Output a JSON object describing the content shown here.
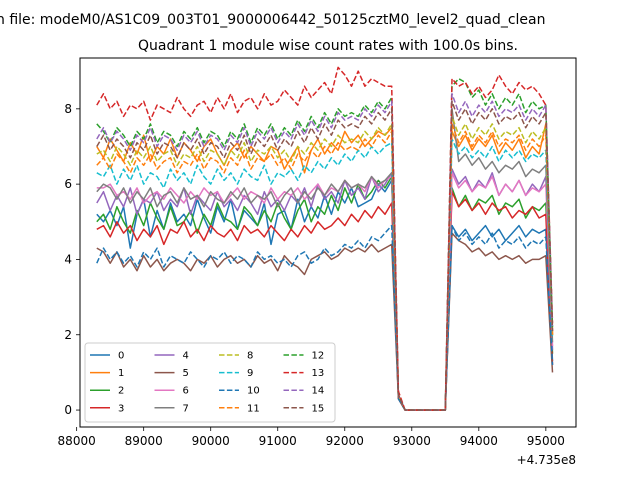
{
  "page": {
    "suptitle": "n file: modeM0/AS1C09_003T01_9000006442_50125cztM0_level2_quad_clean",
    "title": "Quadrant 1 module wise count rates with 100.0s bins."
  },
  "chart_data": {
    "type": "line",
    "title": "Quadrant 1 module wise count rates with 100.0s bins.",
    "xlabel": "",
    "ylabel": "",
    "x_offset_label": "+4.735e8",
    "xlim": [
      88050,
      95450
    ],
    "ylim": [
      -0.45,
      9.35
    ],
    "xticks": [
      88000,
      89000,
      90000,
      91000,
      92000,
      93000,
      94000,
      95000
    ],
    "xtick_labels": [
      "88000",
      "89000",
      "90000",
      "91000",
      "92000",
      "93000",
      "94000",
      "95000"
    ],
    "yticks": [
      0,
      2,
      4,
      6,
      8
    ],
    "ytick_labels": [
      "0",
      "2",
      "4",
      "6",
      "8"
    ],
    "grid": false,
    "legend_position": "lower-left",
    "legend_columns": 4,
    "bins": {
      "x_start": 88300,
      "x_step": 100,
      "count": 69,
      "note": "x values are bin centers, relative to offset 4.735e8"
    },
    "series": [
      {
        "name": "0",
        "color": "#1f77b4",
        "dash": "solid",
        "values": [
          5.2,
          5.0,
          5.3,
          4.9,
          5.4,
          4.3,
          5.2,
          5.6,
          4.6,
          5.3,
          4.8,
          5.5,
          5.0,
          5.2,
          4.9,
          5.6,
          5.1,
          4.7,
          5.4,
          5.0,
          5.6,
          4.8,
          5.3,
          5.1,
          4.9,
          5.5,
          4.4,
          5.2,
          5.3,
          4.8,
          5.6,
          5.0,
          5.4,
          5.1,
          5.7,
          5.2,
          5.8,
          5.5,
          5.9,
          5.4,
          5.5,
          5.6,
          6.0,
          5.8,
          6.1,
          0.4,
          0.0,
          0.0,
          0.0,
          0.0,
          0.0,
          0.0,
          0.0,
          4.9,
          4.6,
          4.8,
          4.5,
          4.7,
          4.9,
          4.6,
          4.8,
          4.5,
          4.7,
          4.9,
          4.6,
          4.8,
          4.7,
          4.8,
          1.3
        ]
      },
      {
        "name": "1",
        "color": "#ff7f0e",
        "dash": "solid",
        "values": [
          7.0,
          6.7,
          7.2,
          6.9,
          6.6,
          7.1,
          6.8,
          7.3,
          6.6,
          7.0,
          6.8,
          7.2,
          6.7,
          7.1,
          6.9,
          6.6,
          7.0,
          7.2,
          6.8,
          6.5,
          6.9,
          7.1,
          6.7,
          7.0,
          6.8,
          6.6,
          7.0,
          6.9,
          6.4,
          6.7,
          7.0,
          6.3,
          6.9,
          7.2,
          6.8,
          7.1,
          6.9,
          7.4,
          7.1,
          7.3,
          7.0,
          7.2,
          7.4,
          7.3,
          7.5,
          0.4,
          0.0,
          0.0,
          0.0,
          0.0,
          0.0,
          0.0,
          0.0,
          7.4,
          7.0,
          7.3,
          6.9,
          7.2,
          7.0,
          7.3,
          6.8,
          7.1,
          6.9,
          7.2,
          6.7,
          7.0,
          6.8,
          7.6,
          2.0
        ]
      },
      {
        "name": "2",
        "color": "#2ca02c",
        "dash": "solid",
        "values": [
          5.0,
          5.2,
          4.8,
          5.4,
          5.0,
          4.7,
          5.3,
          4.9,
          5.5,
          5.1,
          4.8,
          5.4,
          4.9,
          5.0,
          5.3,
          4.7,
          5.2,
          4.9,
          5.5,
          5.1,
          5.0,
          4.8,
          5.4,
          5.2,
          4.9,
          5.3,
          5.0,
          5.5,
          5.1,
          4.8,
          5.3,
          5.6,
          5.0,
          5.4,
          5.2,
          5.7,
          5.3,
          5.9,
          5.5,
          6.0,
          5.6,
          5.8,
          6.1,
          5.9,
          6.2,
          0.4,
          0.0,
          0.0,
          0.0,
          0.0,
          0.0,
          0.0,
          0.0,
          5.9,
          5.4,
          5.7,
          5.3,
          5.6,
          5.5,
          5.7,
          5.2,
          5.5,
          5.4,
          5.6,
          5.1,
          5.4,
          5.3,
          5.5,
          1.5
        ]
      },
      {
        "name": "3",
        "color": "#d62728",
        "dash": "solid",
        "values": [
          4.8,
          4.9,
          4.6,
          5.0,
          4.7,
          4.9,
          4.5,
          4.8,
          4.6,
          4.9,
          4.4,
          4.8,
          4.7,
          5.0,
          4.6,
          4.8,
          4.5,
          4.9,
          4.7,
          4.6,
          4.8,
          4.5,
          4.9,
          4.7,
          4.8,
          4.6,
          4.9,
          4.7,
          4.5,
          4.8,
          4.6,
          4.9,
          4.7,
          5.0,
          4.8,
          4.9,
          5.1,
          4.9,
          5.2,
          5.0,
          5.3,
          5.1,
          5.4,
          5.2,
          5.5,
          0.3,
          0.0,
          0.0,
          0.0,
          0.0,
          0.0,
          0.0,
          0.0,
          5.8,
          5.4,
          5.6,
          5.3,
          5.5,
          5.2,
          5.5,
          5.3,
          5.4,
          5.1,
          5.3,
          5.2,
          5.4,
          5.1,
          5.2,
          1.2
        ]
      },
      {
        "name": "4",
        "color": "#9467bd",
        "dash": "solid",
        "values": [
          5.5,
          5.8,
          5.3,
          5.7,
          5.4,
          5.9,
          5.2,
          5.6,
          5.5,
          5.8,
          5.3,
          5.6,
          5.4,
          5.9,
          5.2,
          5.7,
          5.5,
          5.3,
          5.8,
          5.4,
          5.6,
          5.3,
          5.7,
          5.5,
          5.2,
          5.8,
          5.4,
          5.6,
          5.3,
          5.7,
          5.5,
          5.9,
          5.4,
          6.0,
          5.6,
          5.8,
          5.5,
          6.1,
          5.7,
          5.9,
          5.6,
          6.2,
          5.8,
          6.0,
          6.3,
          0.4,
          0.0,
          0.0,
          0.0,
          0.0,
          0.0,
          0.0,
          0.0,
          6.4,
          6.0,
          6.2,
          5.8,
          6.1,
          5.9,
          6.3,
          5.7,
          6.0,
          5.8,
          6.1,
          5.7,
          6.0,
          5.8,
          6.2,
          1.6
        ]
      },
      {
        "name": "5",
        "color": "#8c564b",
        "dash": "solid",
        "values": [
          4.3,
          4.2,
          3.9,
          4.2,
          3.8,
          4.0,
          3.7,
          4.1,
          3.8,
          4.0,
          3.7,
          3.9,
          4.0,
          3.9,
          3.7,
          4.0,
          3.9,
          4.1,
          3.8,
          4.0,
          4.1,
          3.9,
          4.0,
          3.8,
          4.1,
          3.9,
          4.0,
          3.7,
          4.1,
          3.9,
          3.8,
          3.6,
          4.0,
          4.1,
          4.2,
          4.0,
          4.1,
          4.3,
          4.2,
          4.3,
          4.2,
          4.4,
          4.2,
          4.3,
          4.4,
          0.3,
          0.0,
          0.0,
          0.0,
          0.0,
          0.0,
          0.0,
          0.0,
          4.7,
          4.5,
          4.4,
          4.2,
          4.3,
          4.1,
          4.2,
          4.0,
          4.1,
          4.0,
          4.1,
          3.9,
          4.0,
          4.0,
          4.1,
          1.0
        ]
      },
      {
        "name": "6",
        "color": "#e377c2",
        "dash": "solid",
        "values": [
          5.9,
          5.9,
          6.0,
          5.7,
          5.8,
          5.6,
          5.9,
          5.5,
          5.7,
          5.8,
          5.6,
          5.9,
          5.7,
          5.5,
          5.8,
          5.6,
          5.9,
          5.7,
          5.8,
          5.5,
          5.7,
          5.9,
          5.6,
          5.8,
          5.7,
          5.5,
          5.9,
          5.6,
          5.8,
          5.7,
          5.9,
          5.6,
          5.8,
          6.0,
          5.7,
          5.9,
          5.8,
          6.1,
          5.9,
          6.0,
          5.8,
          6.2,
          5.9,
          6.1,
          6.2,
          0.4,
          0.0,
          0.0,
          0.0,
          0.0,
          0.0,
          0.0,
          0.0,
          6.3,
          5.9,
          6.1,
          5.8,
          6.0,
          5.9,
          6.2,
          5.7,
          6.0,
          5.8,
          6.1,
          5.7,
          5.9,
          5.8,
          6.0,
          1.7
        ]
      },
      {
        "name": "7",
        "color": "#7f7f7f",
        "dash": "solid",
        "values": [
          5.8,
          6.0,
          5.9,
          5.6,
          5.9,
          5.5,
          5.8,
          5.6,
          5.9,
          5.4,
          5.7,
          5.8,
          5.5,
          5.9,
          5.6,
          5.7,
          5.4,
          5.8,
          5.6,
          5.5,
          5.8,
          5.6,
          5.9,
          5.5,
          5.7,
          5.6,
          5.8,
          5.4,
          5.7,
          5.9,
          5.5,
          5.8,
          5.6,
          5.9,
          5.7,
          6.0,
          5.8,
          6.1,
          5.9,
          6.0,
          5.9,
          6.2,
          6.0,
          6.1,
          6.3,
          0.4,
          0.0,
          0.0,
          0.0,
          0.0,
          0.0,
          0.0,
          0.0,
          8.0,
          6.6,
          6.8,
          6.5,
          6.7,
          6.4,
          6.6,
          6.3,
          6.5,
          6.4,
          6.6,
          6.2,
          6.4,
          6.3,
          6.5,
          1.8
        ]
      },
      {
        "name": "8",
        "color": "#bcbd22",
        "dash": "dashed",
        "values": [
          6.8,
          6.9,
          6.6,
          7.0,
          6.8,
          6.5,
          6.9,
          6.7,
          7.0,
          6.6,
          6.8,
          6.9,
          6.5,
          6.8,
          6.7,
          7.0,
          6.6,
          6.9,
          6.8,
          6.5,
          6.9,
          6.7,
          7.1,
          6.6,
          6.9,
          6.8,
          7.0,
          6.7,
          6.9,
          6.6,
          7.0,
          6.8,
          7.1,
          6.9,
          7.2,
          7.0,
          7.3,
          7.1,
          7.2,
          7.1,
          7.4,
          7.2,
          7.5,
          7.3,
          7.6,
          0.4,
          0.0,
          0.0,
          0.0,
          0.0,
          0.0,
          0.0,
          0.0,
          7.8,
          7.3,
          7.6,
          7.2,
          7.5,
          7.3,
          7.6,
          7.2,
          7.4,
          7.3,
          7.5,
          7.1,
          7.4,
          7.2,
          7.5,
          2.0
        ]
      },
      {
        "name": "9",
        "color": "#17becf",
        "dash": "dashed",
        "values": [
          6.3,
          6.2,
          6.5,
          6.0,
          6.4,
          6.1,
          6.5,
          6.0,
          6.3,
          6.2,
          5.9,
          6.4,
          6.1,
          6.3,
          6.0,
          6.5,
          6.2,
          6.0,
          6.4,
          6.1,
          6.3,
          6.0,
          6.4,
          6.2,
          6.1,
          6.5,
          6.0,
          6.3,
          6.2,
          6.4,
          6.1,
          6.5,
          6.3,
          6.6,
          6.4,
          6.7,
          6.5,
          6.8,
          6.6,
          6.9,
          6.7,
          7.0,
          6.8,
          7.0,
          7.1,
          0.4,
          0.0,
          0.0,
          0.0,
          0.0,
          0.0,
          0.0,
          0.0,
          7.2,
          6.8,
          7.0,
          6.7,
          6.9,
          6.7,
          7.0,
          6.6,
          6.9,
          6.7,
          6.9,
          6.6,
          6.8,
          6.7,
          6.9,
          1.9
        ]
      },
      {
        "name": "10",
        "color": "#1f77b4",
        "dash": "dashed",
        "values": [
          3.9,
          4.3,
          4.0,
          4.2,
          3.9,
          4.1,
          3.8,
          4.2,
          4.0,
          4.3,
          3.8,
          4.1,
          4.0,
          3.9,
          4.2,
          4.0,
          3.8,
          4.1,
          4.0,
          4.2,
          3.9,
          4.1,
          4.0,
          3.8,
          4.2,
          4.0,
          4.1,
          3.9,
          4.0,
          3.8,
          4.1,
          4.2,
          3.9,
          4.0,
          4.3,
          4.1,
          4.2,
          4.4,
          4.3,
          4.5,
          4.3,
          4.6,
          4.5,
          4.7,
          4.9,
          0.3,
          0.0,
          0.0,
          0.0,
          0.0,
          0.0,
          0.0,
          0.0,
          4.9,
          4.5,
          4.7,
          4.4,
          4.6,
          4.4,
          4.7,
          4.3,
          4.5,
          4.4,
          4.6,
          4.3,
          4.5,
          4.4,
          4.6,
          1.2
        ]
      },
      {
        "name": "11",
        "color": "#ff7f0e",
        "dash": "dashed",
        "values": [
          6.5,
          6.7,
          6.4,
          6.8,
          6.6,
          6.3,
          6.7,
          6.5,
          6.8,
          6.4,
          6.6,
          6.7,
          6.3,
          6.6,
          6.5,
          6.8,
          6.4,
          6.7,
          6.6,
          6.3,
          6.7,
          6.5,
          6.9,
          6.4,
          6.7,
          6.6,
          6.8,
          6.5,
          6.7,
          6.4,
          6.8,
          6.6,
          6.9,
          6.7,
          7.0,
          6.8,
          7.1,
          6.9,
          7.0,
          6.9,
          7.2,
          7.0,
          7.3,
          7.1,
          7.4,
          0.4,
          0.0,
          0.0,
          0.0,
          0.0,
          0.0,
          0.0,
          0.0,
          7.6,
          7.1,
          7.4,
          7.0,
          7.3,
          7.1,
          7.4,
          7.0,
          7.2,
          7.1,
          7.3,
          6.9,
          7.2,
          7.0,
          7.3,
          2.0
        ]
      },
      {
        "name": "12",
        "color": "#2ca02c",
        "dash": "dashed",
        "values": [
          7.6,
          7.4,
          7.1,
          7.5,
          7.3,
          7.0,
          7.4,
          7.2,
          7.6,
          7.1,
          7.4,
          7.3,
          7.0,
          7.4,
          7.2,
          7.5,
          7.1,
          7.4,
          7.3,
          7.0,
          7.4,
          7.2,
          7.6,
          7.1,
          7.5,
          7.3,
          7.6,
          7.2,
          7.5,
          7.3,
          7.7,
          7.4,
          7.8,
          7.5,
          7.9,
          7.6,
          8.0,
          7.8,
          7.9,
          7.8,
          8.1,
          7.9,
          8.2,
          8.0,
          8.3,
          0.4,
          0.0,
          0.0,
          0.0,
          0.0,
          0.0,
          0.0,
          0.0,
          8.6,
          8.8,
          8.7,
          8.3,
          8.5,
          8.1,
          8.4,
          8.0,
          8.3,
          8.1,
          8.4,
          7.9,
          8.2,
          8.0,
          8.1,
          2.2
        ]
      },
      {
        "name": "13",
        "color": "#d62728",
        "dash": "dashed",
        "values": [
          8.1,
          8.4,
          8.0,
          8.2,
          7.8,
          8.1,
          8.0,
          8.2,
          7.7,
          8.1,
          8.0,
          7.9,
          8.3,
          8.0,
          7.8,
          8.1,
          8.2,
          7.9,
          8.3,
          8.0,
          8.4,
          7.9,
          8.2,
          8.3,
          8.0,
          8.4,
          8.1,
          8.2,
          8.5,
          8.3,
          8.1,
          8.6,
          8.3,
          8.5,
          8.7,
          8.4,
          9.1,
          8.9,
          8.6,
          9.0,
          8.6,
          8.8,
          8.7,
          8.6,
          8.6,
          0.5,
          0.0,
          0.0,
          0.0,
          0.0,
          0.0,
          0.0,
          0.0,
          8.8,
          8.6,
          8.7,
          8.4,
          8.6,
          8.3,
          8.5,
          8.9,
          8.6,
          8.4,
          8.7,
          8.5,
          8.6,
          8.4,
          8.1,
          2.3
        ]
      },
      {
        "name": "14",
        "color": "#9467bd",
        "dash": "dashed",
        "values": [
          7.2,
          7.5,
          7.1,
          7.4,
          7.2,
          6.9,
          7.3,
          7.1,
          7.5,
          7.0,
          7.3,
          7.2,
          6.9,
          7.3,
          7.1,
          7.4,
          7.0,
          7.3,
          7.2,
          6.9,
          7.3,
          7.1,
          7.5,
          7.0,
          7.4,
          7.2,
          7.5,
          7.1,
          7.4,
          7.2,
          7.6,
          7.3,
          7.7,
          7.4,
          7.8,
          7.5,
          7.9,
          7.7,
          7.8,
          7.7,
          8.0,
          7.8,
          8.1,
          7.9,
          8.2,
          0.4,
          0.0,
          0.0,
          0.0,
          0.0,
          0.0,
          0.0,
          0.0,
          8.4,
          7.9,
          8.2,
          7.8,
          8.1,
          7.9,
          8.2,
          7.8,
          8.0,
          7.9,
          8.1,
          7.7,
          8.0,
          7.8,
          8.1,
          2.1
        ]
      },
      {
        "name": "15",
        "color": "#8c564b",
        "dash": "dashed",
        "values": [
          7.0,
          7.3,
          6.9,
          7.2,
          7.0,
          6.7,
          7.1,
          6.9,
          7.3,
          6.8,
          7.1,
          7.0,
          6.7,
          7.1,
          6.9,
          7.2,
          6.8,
          7.1,
          7.0,
          6.7,
          7.1,
          6.9,
          7.3,
          6.8,
          7.2,
          7.0,
          7.3,
          6.9,
          7.2,
          7.0,
          7.4,
          7.1,
          7.5,
          7.2,
          7.6,
          7.3,
          7.7,
          7.5,
          7.6,
          7.5,
          7.8,
          7.6,
          7.9,
          7.7,
          8.0,
          0.4,
          0.0,
          0.0,
          0.0,
          0.0,
          0.0,
          0.0,
          0.0,
          8.2,
          7.7,
          8.0,
          7.6,
          7.9,
          7.7,
          8.0,
          7.6,
          7.8,
          7.7,
          7.9,
          7.5,
          7.8,
          7.6,
          7.9,
          2.1
        ]
      }
    ]
  }
}
